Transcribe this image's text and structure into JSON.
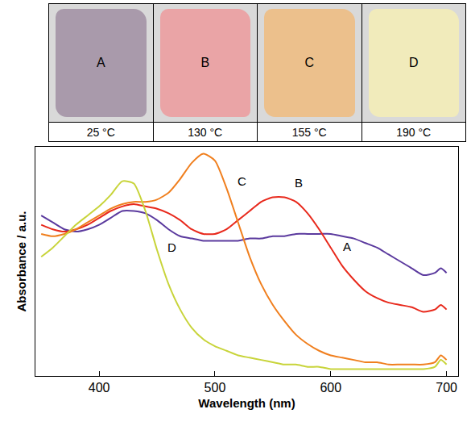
{
  "panels": [
    {
      "label": "A",
      "caption": "25 °C",
      "color": "#a99aab"
    },
    {
      "label": "B",
      "caption": "130 °C",
      "color": "#eaa4a6"
    },
    {
      "label": "C",
      "caption": "155 °C",
      "color": "#ecc08c"
    },
    {
      "label": "D",
      "caption": "190 °C",
      "color": "#f1ebbb"
    }
  ],
  "chart_data": {
    "type": "line",
    "x_label": "Wavelength (nm)",
    "y_label": "Absorbance / a.u.",
    "x": [
      350,
      360,
      370,
      380,
      390,
      400,
      410,
      420,
      430,
      440,
      450,
      460,
      470,
      480,
      490,
      500,
      510,
      520,
      530,
      540,
      550,
      560,
      570,
      580,
      590,
      600,
      610,
      620,
      630,
      640,
      650,
      660,
      670,
      680,
      690,
      695,
      700
    ],
    "series": [
      {
        "name": "A",
        "color": "#5b3a9e",
        "values": [
          0.7,
          0.67,
          0.64,
          0.63,
          0.64,
          0.66,
          0.69,
          0.72,
          0.72,
          0.71,
          0.68,
          0.64,
          0.61,
          0.6,
          0.59,
          0.59,
          0.59,
          0.59,
          0.6,
          0.6,
          0.61,
          0.61,
          0.62,
          0.62,
          0.62,
          0.62,
          0.61,
          0.6,
          0.58,
          0.56,
          0.53,
          0.5,
          0.47,
          0.44,
          0.45,
          0.47,
          0.45
        ]
      },
      {
        "name": "B",
        "color": "#e8291c",
        "values": [
          0.66,
          0.64,
          0.63,
          0.64,
          0.66,
          0.69,
          0.72,
          0.74,
          0.75,
          0.74,
          0.73,
          0.71,
          0.68,
          0.64,
          0.62,
          0.62,
          0.64,
          0.68,
          0.72,
          0.76,
          0.78,
          0.78,
          0.76,
          0.71,
          0.64,
          0.56,
          0.48,
          0.42,
          0.37,
          0.34,
          0.32,
          0.31,
          0.3,
          0.28,
          0.29,
          0.31,
          0.29
        ]
      },
      {
        "name": "C",
        "color": "#f07f1e",
        "values": [
          0.62,
          0.61,
          0.62,
          0.64,
          0.67,
          0.7,
          0.73,
          0.75,
          0.76,
          0.76,
          0.77,
          0.8,
          0.86,
          0.93,
          0.97,
          0.94,
          0.82,
          0.67,
          0.52,
          0.4,
          0.31,
          0.24,
          0.18,
          0.14,
          0.11,
          0.09,
          0.08,
          0.07,
          0.06,
          0.06,
          0.05,
          0.05,
          0.05,
          0.05,
          0.06,
          0.09,
          0.07
        ]
      },
      {
        "name": "D",
        "color": "#c8d43a",
        "values": [
          0.52,
          0.56,
          0.61,
          0.66,
          0.7,
          0.74,
          0.79,
          0.85,
          0.84,
          0.72,
          0.55,
          0.4,
          0.29,
          0.21,
          0.16,
          0.13,
          0.11,
          0.09,
          0.08,
          0.07,
          0.06,
          0.05,
          0.05,
          0.04,
          0.04,
          0.03,
          0.03,
          0.03,
          0.03,
          0.03,
          0.03,
          0.03,
          0.03,
          0.03,
          0.04,
          0.07,
          0.05
        ]
      }
    ],
    "annotations": [
      {
        "text": "A",
        "x": 614,
        "y": 0.565
      },
      {
        "text": "B",
        "x": 572,
        "y": 0.845
      },
      {
        "text": "C",
        "x": 523,
        "y": 0.85
      },
      {
        "text": "D",
        "x": 463,
        "y": 0.56
      }
    ],
    "xlim": [
      345,
      710
    ],
    "xticks": [
      400,
      500,
      600,
      700
    ],
    "ylim": [
      0,
      1
    ],
    "tick_labels": "x",
    "grid": false
  }
}
